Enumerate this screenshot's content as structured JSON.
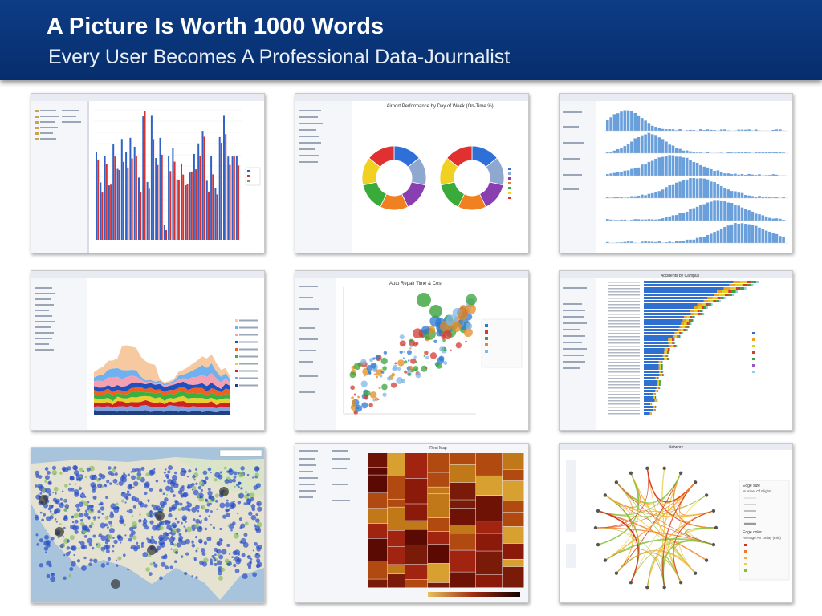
{
  "slide": {
    "title": "A Picture Is Worth 1000 Words",
    "subtitle": "Every User Becomes A Professional Data-Journalist"
  },
  "tiles": {
    "t2": {
      "title": "Airport Performance by Day of Week (On-Time %)"
    },
    "t5": {
      "title": "Auto Repair Time & Cost"
    },
    "t6": {
      "title": "Accidents by Campus"
    },
    "t8": {
      "title": "Rect Map"
    },
    "t9": {
      "title": "Network",
      "legend_title": "Edge size",
      "legend_sub": "Number Of Flights",
      "legend_color": "Edge color",
      "legend_color_sub": "Average Arr Delay (min)"
    }
  },
  "colors": {
    "header": "#0b3a82",
    "bar_blue": "#2f63c8",
    "bar_red": "#d8322f",
    "hist_blue": "#4f8fd6"
  }
}
